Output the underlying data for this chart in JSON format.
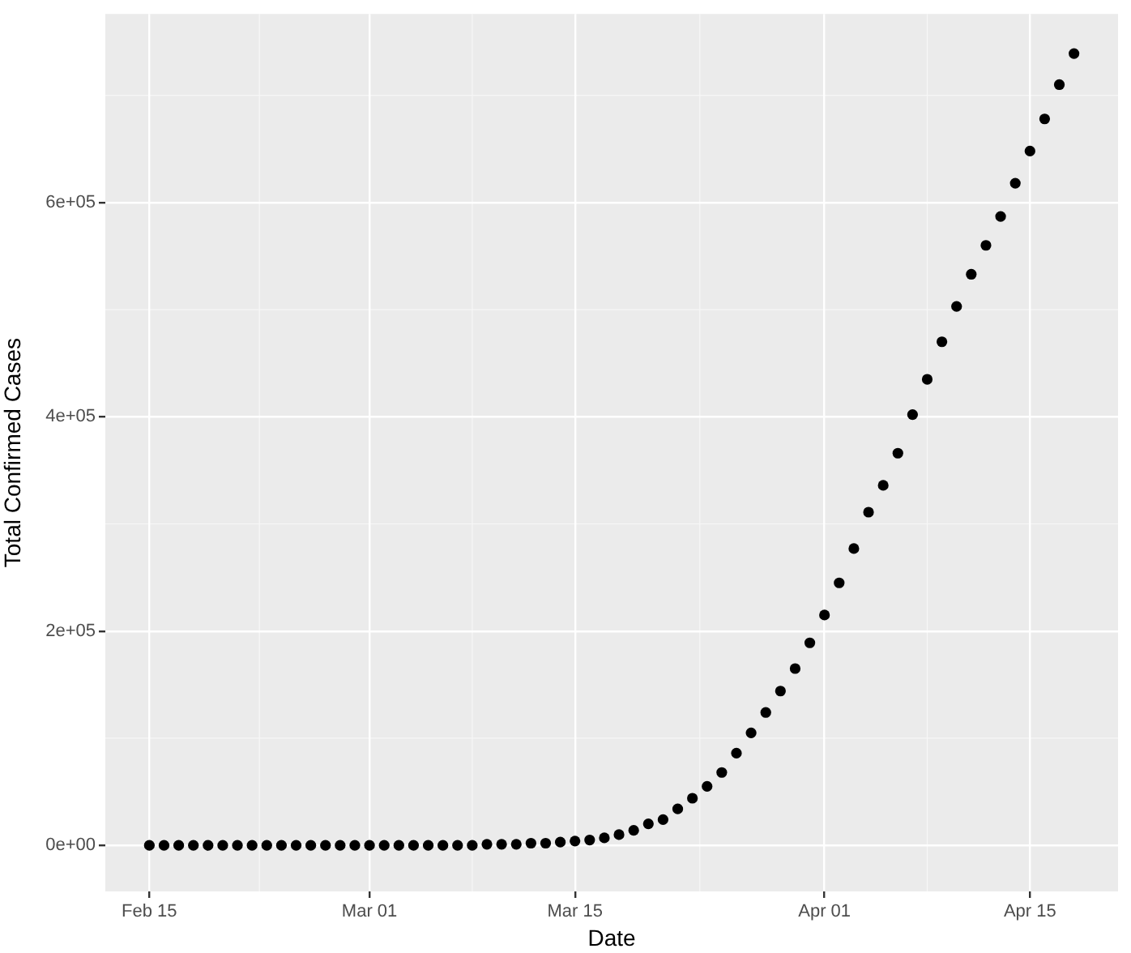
{
  "chart_data": {
    "type": "scatter",
    "xlabel": "Date",
    "ylabel": "Total Confirmed Cases",
    "x": [
      "--02-15",
      "--02-16",
      "--02-17",
      "--02-18",
      "--02-19",
      "--02-20",
      "--02-21",
      "--02-22",
      "--02-23",
      "--02-24",
      "--02-25",
      "--02-26",
      "--02-27",
      "--02-28",
      "--02-29",
      "--03-01",
      "--03-02",
      "--03-03",
      "--03-04",
      "--03-05",
      "--03-06",
      "--03-07",
      "--03-08",
      "--03-09",
      "--03-10",
      "--03-11",
      "--03-12",
      "--03-13",
      "--03-14",
      "--03-15",
      "--03-16",
      "--03-17",
      "--03-18",
      "--03-19",
      "--03-20",
      "--03-21",
      "--03-22",
      "--03-23",
      "--03-24",
      "--03-25",
      "--03-26",
      "--03-27",
      "--03-28",
      "--03-29",
      "--03-30",
      "--03-31",
      "--04-01",
      "--04-02",
      "--04-03",
      "--04-04",
      "--04-05",
      "--04-06",
      "--04-07",
      "--04-08",
      "--04-09",
      "--04-10",
      "--04-11",
      "--04-12",
      "--04-13",
      "--04-14",
      "--04-15",
      "--04-16",
      "--04-17",
      "--04-18"
    ],
    "series": [
      {
        "color": "#000000",
        "values": [
          0,
          0,
          0,
          0,
          0,
          0,
          0,
          0,
          0,
          0,
          0,
          0,
          0,
          0,
          0,
          0,
          0,
          0,
          0,
          0,
          0,
          0,
          0,
          1000,
          1000,
          1000,
          2000,
          2000,
          3000,
          4000,
          5000,
          7000,
          10000,
          14000,
          20000,
          24000,
          34000,
          44000,
          55000,
          68000,
          86000,
          105000,
          124000,
          144000,
          165000,
          189000,
          215000,
          245000,
          277000,
          311000,
          336000,
          366000,
          402000,
          435000,
          470000,
          503000,
          533000,
          560000,
          587000,
          618000,
          648000,
          678000,
          710000,
          739000
        ]
      }
    ],
    "xlim": [
      "--02-12",
      "--04-21"
    ],
    "xticks": [
      {
        "value": "--02-15",
        "label": "Feb 15"
      },
      {
        "value": "--03-01",
        "label": "Mar 01"
      },
      {
        "value": "--03-15",
        "label": "Mar 15"
      },
      {
        "value": "--04-01",
        "label": "Apr 01"
      },
      {
        "value": "--04-15",
        "label": "Apr 15"
      }
    ],
    "ylim": [
      -43000,
      776000
    ],
    "yticks": [
      {
        "value": 0,
        "label": "0e+00"
      },
      {
        "value": 200000,
        "label": "2e+05"
      },
      {
        "value": 400000,
        "label": "4e+05"
      },
      {
        "value": 600000,
        "label": "6e+05"
      }
    ],
    "grid": true,
    "legend": false,
    "marker": "circle"
  }
}
